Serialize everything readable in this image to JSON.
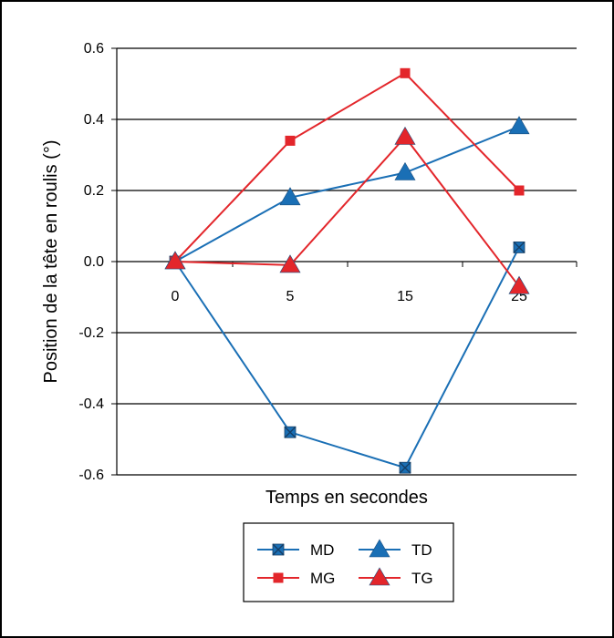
{
  "chart_data": {
    "type": "line",
    "categories": [
      "0",
      "5",
      "15",
      "25"
    ],
    "xlabel": "Temps en secondes",
    "ylabel": "Position de la tête en roulis (°)",
    "ylim": [
      -0.6,
      0.6
    ],
    "yticks": [
      "0.6",
      "0.4",
      "0.2",
      "0.0",
      "-0.2",
      "-0.4",
      "-0.6"
    ],
    "grid": "horizontal",
    "legend_position": "bottom",
    "series": [
      {
        "name": "MD",
        "color": "#1a6fb5",
        "marker": "x-square",
        "values": [
          0.0,
          -0.48,
          -0.58,
          0.04
        ]
      },
      {
        "name": "TD",
        "color": "#1a6fb5",
        "marker": "triangle",
        "values": [
          0.0,
          0.18,
          0.25,
          0.38
        ]
      },
      {
        "name": "MG",
        "color": "#e3262b",
        "marker": "square",
        "values": [
          0.0,
          0.34,
          0.53,
          0.2
        ]
      },
      {
        "name": "TG",
        "color": "#e3262b",
        "marker": "triangle",
        "values": [
          0.0,
          -0.01,
          0.35,
          -0.07
        ]
      }
    ]
  }
}
